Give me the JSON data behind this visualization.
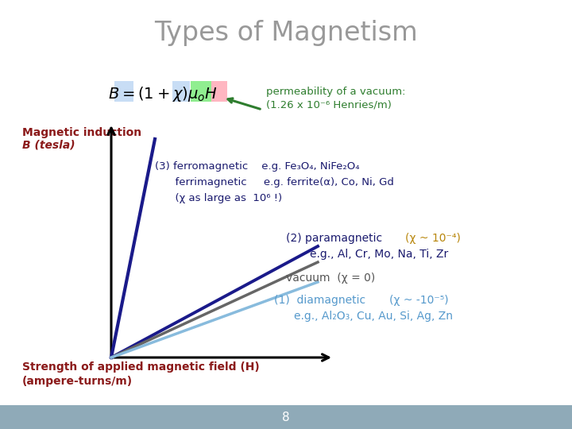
{
  "title": "Types of Magnetism",
  "title_color": "#999999",
  "title_fontsize": 24,
  "bg_color": "#ffffff",
  "footer_color": "#8faab8",
  "footer_text": "8",
  "permeability_line1": "permeability of a vacuum:",
  "permeability_line2": "(1.26 x 10⁻⁶ Henries/m)",
  "permeability_color": "#2e7d2e",
  "axis_label_B1": "Magnetic induction",
  "axis_label_B2": "B (tesla)",
  "axis_label_H1": "Strength of applied magnetic field (​H​)",
  "axis_label_H2": "(ampere-turns/m)",
  "axis_label_color": "#8b1a1a",
  "ferro_line1": "(3) ferromagnetic    e.g. Fe₃O₄, NiFe₂O₄",
  "ferro_line2": "      ferrimagnetic     e.g. ferrite(α), Co, Ni, Gd",
  "ferro_line3": "      (χ as large as  10⁶ !)",
  "ferro_color": "#1a1a6e",
  "para_label": "(2) paramagnetic",
  "para_chi": "(χ ~ 10⁻⁴)",
  "para_eg": "e.g., Al, Cr, Mo, Na, Ti, Zr",
  "para_label_color": "#1a1a6e",
  "para_chi_color": "#b8860b",
  "vacuum_text": "vacuum  (χ = 0)",
  "vacuum_color": "#555555",
  "dia_label": "(1)  diamagnetic",
  "dia_chi": "(χ ~ -10⁻⁵)",
  "dia_eg": "e.g., Al₂O₃, Cu, Au, Si, Ag, Zn",
  "dia_color": "#5599cc",
  "line_ferro_color": "#1a1a8a",
  "line_vacuum_color": "#666666",
  "line_dia_color": "#88bbdd",
  "axis_color": "#000000",
  "B_box_color": "#c8ddf5",
  "chi_box_color": "#c8ddf5",
  "mu_box_color": "#90ee90",
  "H_box_color": "#ffb6c1"
}
